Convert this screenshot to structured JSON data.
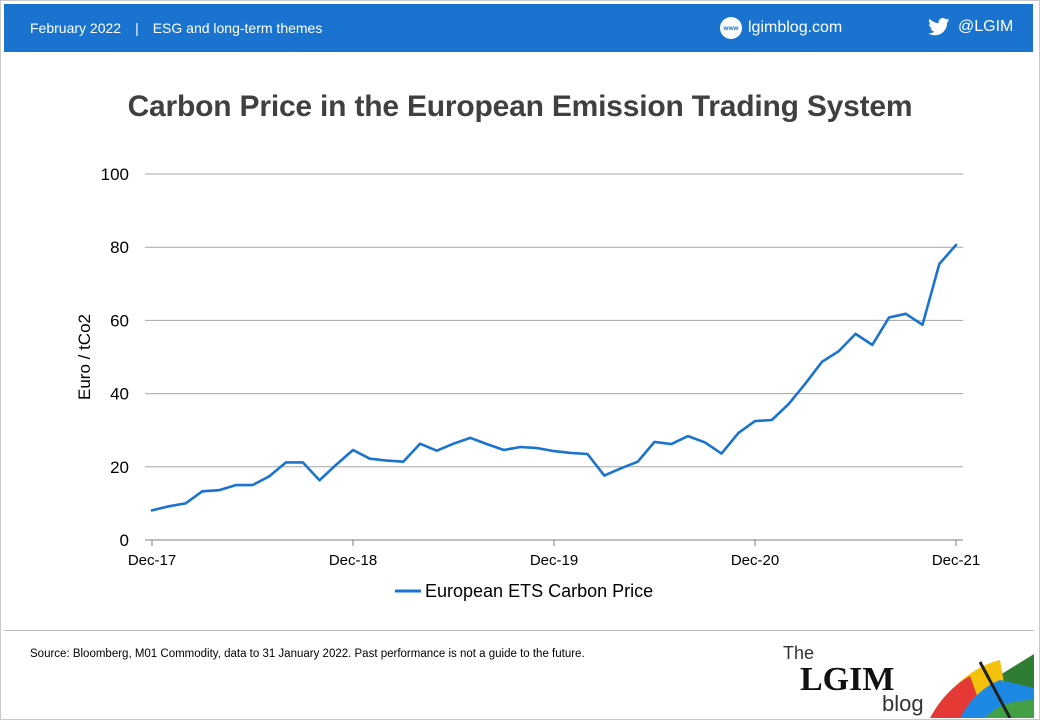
{
  "header": {
    "date": "February 2022",
    "separator": "|",
    "topic": "ESG and long-term themes",
    "site_icon": "www",
    "site": "lgimblog.com",
    "twitter": "@LGIM",
    "bg_color": "#1a73cf"
  },
  "chart_data": {
    "type": "line",
    "title": "Carbon Price in the European Emission Trading System",
    "xlabel": "",
    "ylabel": "Euro / tCo2",
    "ylim": [
      0,
      100
    ],
    "yticks": [
      0,
      20,
      40,
      60,
      80,
      100
    ],
    "xticks": [
      "Dec-17",
      "Dec-18",
      "Dec-19",
      "Dec-20",
      "Dec-21"
    ],
    "grid": true,
    "legend_position": "bottom",
    "series": [
      {
        "name": "European ETS Carbon Price",
        "color": "#1a73cf",
        "x": [
          "Dec-17",
          "Jan-18",
          "Feb-18",
          "Mar-18",
          "Apr-18",
          "May-18",
          "Jun-18",
          "Jul-18",
          "Aug-18",
          "Sep-18",
          "Oct-18",
          "Nov-18",
          "Dec-18",
          "Jan-19",
          "Feb-19",
          "Mar-19",
          "Apr-19",
          "May-19",
          "Jun-19",
          "Jul-19",
          "Aug-19",
          "Sep-19",
          "Oct-19",
          "Nov-19",
          "Dec-19",
          "Jan-20",
          "Feb-20",
          "Mar-20",
          "Apr-20",
          "May-20",
          "Jun-20",
          "Jul-20",
          "Aug-20",
          "Sep-20",
          "Oct-20",
          "Nov-20",
          "Dec-20",
          "Jan-21",
          "Feb-21",
          "Mar-21",
          "Apr-21",
          "May-21",
          "Jun-21",
          "Jul-21",
          "Aug-21",
          "Sep-21",
          "Oct-21",
          "Nov-21",
          "Dec-21"
        ],
        "values": [
          8.1,
          9.2,
          10.0,
          13.3,
          13.6,
          15.0,
          15.0,
          17.4,
          21.2,
          21.2,
          16.3,
          20.6,
          24.6,
          22.2,
          21.7,
          21.4,
          26.3,
          24.4,
          26.3,
          27.9,
          26.2,
          24.6,
          25.4,
          25.1,
          24.3,
          23.8,
          23.5,
          17.6,
          19.6,
          21.4,
          26.8,
          26.2,
          28.4,
          26.7,
          23.6,
          29.2,
          32.5,
          32.8,
          37.1,
          42.7,
          48.7,
          51.6,
          56.3,
          53.3,
          60.8,
          61.8,
          58.8,
          75.4,
          80.6
        ]
      }
    ]
  },
  "footer": {
    "source": "Source: Bloomberg, M01 Commodity, data to 31 January 2022. Past performance is not a guide to the future.",
    "logo_the": "The",
    "logo_main": "LGIM",
    "logo_sub": "blog"
  }
}
